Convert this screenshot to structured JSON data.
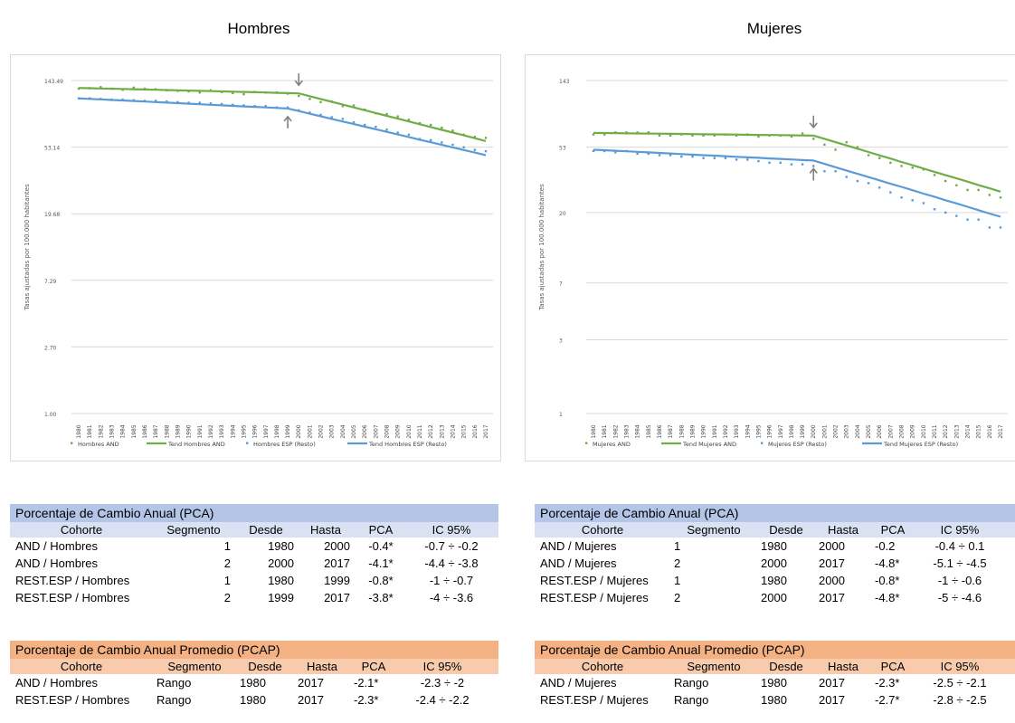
{
  "chart_data": [
    {
      "type": "line",
      "title": "Hombres",
      "ylabel": "Tasas ajustadas por 100.000 habitantes",
      "yscale": "log",
      "ylim": [
        1.0,
        143.49
      ],
      "yticks": [
        "143.49",
        "53.14",
        "19.68",
        "7.29",
        "2.70",
        "1.00"
      ],
      "x": [
        "1980",
        "1981",
        "1982",
        "1983",
        "1984",
        "1985",
        "1986",
        "1987",
        "1988",
        "1989",
        "1990",
        "1991",
        "1992",
        "1993",
        "1994",
        "1995",
        "1996",
        "1997",
        "1998",
        "1999",
        "2000",
        "2001",
        "2002",
        "2003",
        "2004",
        "2005",
        "2006",
        "2007",
        "2008",
        "2009",
        "2010",
        "2011",
        "2012",
        "2013",
        "2014",
        "2015",
        "2016",
        "2017"
      ],
      "series": [
        {
          "name": "Hombres AND",
          "kind": "points",
          "color": "#70ad47",
          "values": [
            127,
            128,
            130,
            127,
            125,
            129,
            127,
            126,
            124,
            123,
            122,
            120,
            124,
            121,
            119,
            117,
            121,
            120,
            120,
            118,
            114,
            109,
            104,
            105,
            98,
            99,
            93,
            88,
            87,
            84,
            80,
            76,
            74,
            71,
            68,
            64,
            62,
            61
          ]
        },
        {
          "name": "Tend Hombres AND",
          "kind": "line",
          "color": "#70ad47",
          "values": [
            128.5,
            128.0,
            127.5,
            127.0,
            126.5,
            126.0,
            125.5,
            125.0,
            124.5,
            124.0,
            123.5,
            123.0,
            122.5,
            122.0,
            121.5,
            121.0,
            120.5,
            120.0,
            119.5,
            119.0,
            118.5,
            113.6,
            109.0,
            104.5,
            100.2,
            96.1,
            92.2,
            88.4,
            84.8,
            81.3,
            78.0,
            74.8,
            71.7,
            68.8,
            66.0,
            63.3,
            60.7,
            58.2
          ]
        },
        {
          "name": "Hombres ESP (Resto)",
          "kind": "points",
          "color": "#5b9bd5",
          "values": [
            110,
            110,
            109,
            108,
            108,
            107,
            106,
            106,
            105,
            104,
            103,
            103,
            102,
            101,
            100,
            99,
            98,
            98,
            96,
            96,
            92,
            89,
            86,
            83,
            81,
            77,
            74,
            72,
            69,
            66,
            64,
            60,
            59,
            57,
            55,
            53,
            51,
            50
          ]
        },
        {
          "name": "Tend Hombres ESP (Resto)",
          "kind": "line",
          "color": "#5b9bd5",
          "values": [
            110,
            109.1,
            108.3,
            107.4,
            106.6,
            105.7,
            104.9,
            104.1,
            103.2,
            102.4,
            101.6,
            100.8,
            100.0,
            99.2,
            98.4,
            97.6,
            96.9,
            96.1,
            95.3,
            94.6,
            91.0,
            87.5,
            84.2,
            81.0,
            77.9,
            75.0,
            72.1,
            69.4,
            66.8,
            64.2,
            61.8,
            59.4,
            57.2,
            55.0,
            52.9,
            50.9,
            49.0,
            47.1
          ]
        }
      ],
      "arrows": [
        {
          "x": "2000",
          "direction": "down"
        },
        {
          "x": "1999",
          "direction": "up"
        }
      ]
    },
    {
      "type": "line",
      "title": "Mujeres",
      "ylabel": "Tasas ajustadas por 100.000 habitantes",
      "yscale": "log",
      "ylim": [
        1,
        143
      ],
      "yticks": [
        "143",
        "53",
        "20",
        "7",
        "3",
        "1"
      ],
      "x": [
        "1980",
        "1981",
        "1982",
        "1983",
        "1984",
        "1985",
        "1986",
        "1987",
        "1988",
        "1989",
        "1990",
        "1991",
        "1992",
        "1993",
        "1994",
        "1995",
        "1996",
        "1997",
        "1998",
        "1999",
        "2000",
        "2001",
        "2002",
        "2003",
        "2004",
        "2005",
        "2006",
        "2007",
        "2008",
        "2009",
        "2010",
        "2011",
        "2012",
        "2013",
        "2014",
        "2015",
        "2016",
        "2017"
      ],
      "series": [
        {
          "name": "Mujeres AND",
          "kind": "points",
          "color": "#70ad47",
          "values": [
            64,
            64,
            66,
            66,
            66,
            66,
            63,
            63,
            64,
            63,
            63,
            63,
            64,
            63,
            64,
            62,
            63,
            63,
            62,
            65,
            60,
            55,
            51,
            57,
            53,
            47,
            45,
            42,
            40,
            39,
            38,
            35,
            32,
            30,
            28,
            28,
            26,
            25
          ]
        },
        {
          "name": "Tend Mujeres AND",
          "kind": "line",
          "color": "#70ad47",
          "values": [
            65.5,
            65.4,
            65.3,
            65.1,
            65.0,
            64.9,
            64.8,
            64.6,
            64.5,
            64.4,
            64.2,
            64.1,
            64.0,
            63.9,
            63.7,
            63.6,
            63.5,
            63.4,
            63.2,
            63.1,
            63.0,
            60.0,
            57.1,
            54.4,
            51.8,
            49.3,
            46.9,
            44.7,
            42.5,
            40.5,
            38.5,
            36.7,
            34.9,
            33.3,
            31.7,
            30.1,
            28.7,
            27.3
          ]
        },
        {
          "name": "Mujeres ESP (Resto)",
          "kind": "points",
          "color": "#5b9bd5",
          "values": [
            50,
            50,
            49,
            50,
            48,
            48,
            47,
            47,
            46,
            46,
            45,
            45,
            45,
            44,
            44,
            43,
            42,
            42,
            41,
            41,
            40,
            37,
            37,
            34,
            32,
            31,
            29,
            27,
            25,
            24,
            23,
            21,
            20,
            19,
            18,
            18,
            16,
            16
          ]
        },
        {
          "name": "Tend Mujeres ESP (Resto)",
          "kind": "line",
          "color": "#5b9bd5",
          "values": [
            51.0,
            50.6,
            50.2,
            49.8,
            49.4,
            49.0,
            48.6,
            48.2,
            47.8,
            47.4,
            47.0,
            46.7,
            46.3,
            45.9,
            45.5,
            45.2,
            44.8,
            44.5,
            44.1,
            43.7,
            43.4,
            41.3,
            39.3,
            37.4,
            35.6,
            33.9,
            32.3,
            30.7,
            29.3,
            27.9,
            26.5,
            25.3,
            24.0,
            22.9,
            21.8,
            20.7,
            19.7,
            18.8
          ]
        }
      ],
      "arrows": [
        {
          "x": "2000",
          "direction": "down"
        },
        {
          "x": "2000",
          "direction": "up"
        }
      ]
    }
  ],
  "tables": [
    {
      "key": "pca_hombres",
      "title": "Porcentaje de Cambio Anual (PCA)",
      "columns": [
        "Cohorte",
        "Segmento",
        "Desde",
        "Hasta",
        "PCA",
        "IC 95%"
      ],
      "rows": [
        [
          "AND / Hombres",
          "1",
          "1980",
          "2000",
          "-0.4*",
          "-0.7 ÷ -0.2"
        ],
        [
          "AND / Hombres",
          "2",
          "2000",
          "2017",
          "-4.1*",
          "-4.4 ÷ -3.8"
        ],
        [
          "REST.ESP / Hombres",
          "1",
          "1980",
          "1999",
          "-0.8*",
          "-1 ÷ -0.7"
        ],
        [
          "REST.ESP / Hombres",
          "2",
          "1999",
          "2017",
          "-3.8*",
          "-4 ÷ -3.6"
        ]
      ]
    },
    {
      "key": "pca_mujeres",
      "title": "Porcentaje de Cambio Anual (PCA)",
      "columns": [
        "Cohorte",
        "Segmento",
        "Desde",
        "Hasta",
        "PCA",
        "IC 95%"
      ],
      "rows": [
        [
          "AND / Mujeres",
          "1",
          "1980",
          "2000",
          "-0.2",
          "-0.4 ÷ 0.1"
        ],
        [
          "AND / Mujeres",
          "2",
          "2000",
          "2017",
          "-4.8*",
          "-5.1 ÷ -4.5"
        ],
        [
          "REST.ESP / Mujeres",
          "1",
          "1980",
          "2000",
          "-0.8*",
          "-1 ÷ -0.6"
        ],
        [
          "REST.ESP / Mujeres",
          "2",
          "2000",
          "2017",
          "-4.8*",
          "-5 ÷ -4.6"
        ]
      ]
    },
    {
      "key": "pcap_hombres",
      "title": "Porcentaje de Cambio Anual Promedio (PCAP)",
      "columns": [
        "Cohorte",
        "Segmento",
        "Desde",
        "Hasta",
        "PCA",
        "IC 95%"
      ],
      "rows": [
        [
          "AND / Hombres",
          "Rango",
          "1980",
          "2017",
          "-2.1*",
          "-2.3 ÷ -2"
        ],
        [
          "REST.ESP / Hombres",
          "Rango",
          "1980",
          "2017",
          "-2.3*",
          "-2.4 ÷ -2.2"
        ]
      ]
    },
    {
      "key": "pcap_mujeres",
      "title": "Porcentaje de Cambio Anual Promedio (PCAP)",
      "columns": [
        "Cohorte",
        "Segmento",
        "Desde",
        "Hasta",
        "PCA",
        "IC 95%"
      ],
      "rows": [
        [
          "AND / Mujeres",
          "Rango",
          "1980",
          "2017",
          "-2.3*",
          "-2.5 ÷ -2.1"
        ],
        [
          "REST.ESP / Mujeres",
          "Rango",
          "1980",
          "2017",
          "-2.7*",
          "-2.8 ÷ -2.5"
        ]
      ]
    }
  ]
}
